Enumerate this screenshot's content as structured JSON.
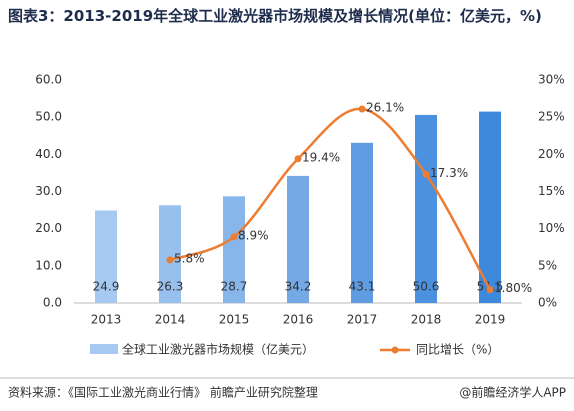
{
  "chart_data": {
    "type": "combo",
    "title": "图表3：2013-2019年全球工业激光器市场规模及增长情况(单位：亿美元，%)",
    "categories": [
      "2013",
      "2014",
      "2015",
      "2016",
      "2017",
      "2018",
      "2019"
    ],
    "series": [
      {
        "name": "全球工业激光器市场规模（亿美元）",
        "type": "bar",
        "colors": [
          "#a6c9f1",
          "#98c0ee",
          "#88b6ea",
          "#74a9e6",
          "#5f9ce2",
          "#4b91df",
          "#3f89dc"
        ],
        "values": [
          24.9,
          26.3,
          28.7,
          34.2,
          43.1,
          50.6,
          51.5
        ]
      },
      {
        "name": "同比增长（%）",
        "type": "line",
        "axis": "y2",
        "color": "#ed7d31",
        "values": [
          null,
          5.8,
          8.9,
          19.4,
          26.1,
          17.3,
          1.8
        ],
        "value_labels": [
          null,
          "5.8%",
          "8.9%",
          "19.4%",
          "26.1%",
          "17.3%",
          "1.80%"
        ]
      }
    ],
    "ylim": [
      0,
      60
    ],
    "yticks": [
      {
        "value": 0,
        "label": "0.0"
      },
      {
        "value": 10,
        "label": "10.0"
      },
      {
        "value": 20,
        "label": "20.0"
      },
      {
        "value": 30,
        "label": "30.0"
      },
      {
        "value": 40,
        "label": "40.0"
      },
      {
        "value": 50,
        "label": "50.0"
      },
      {
        "value": 60,
        "label": "60.0"
      }
    ],
    "y2lim": [
      0,
      30
    ],
    "y2ticks": [
      {
        "value": 0,
        "label": "0%"
      },
      {
        "value": 5,
        "label": "5%"
      },
      {
        "value": 10,
        "label": "10%"
      },
      {
        "value": 15,
        "label": "15%"
      },
      {
        "value": 20,
        "label": "20%"
      },
      {
        "value": 25,
        "label": "25%"
      },
      {
        "value": 30,
        "label": "30%"
      }
    ]
  },
  "footer": {
    "source": "资料来源：《国际工业激光商业行情》 前瞻产业研究院整理",
    "credit": "@前瞻经济学人APP"
  }
}
